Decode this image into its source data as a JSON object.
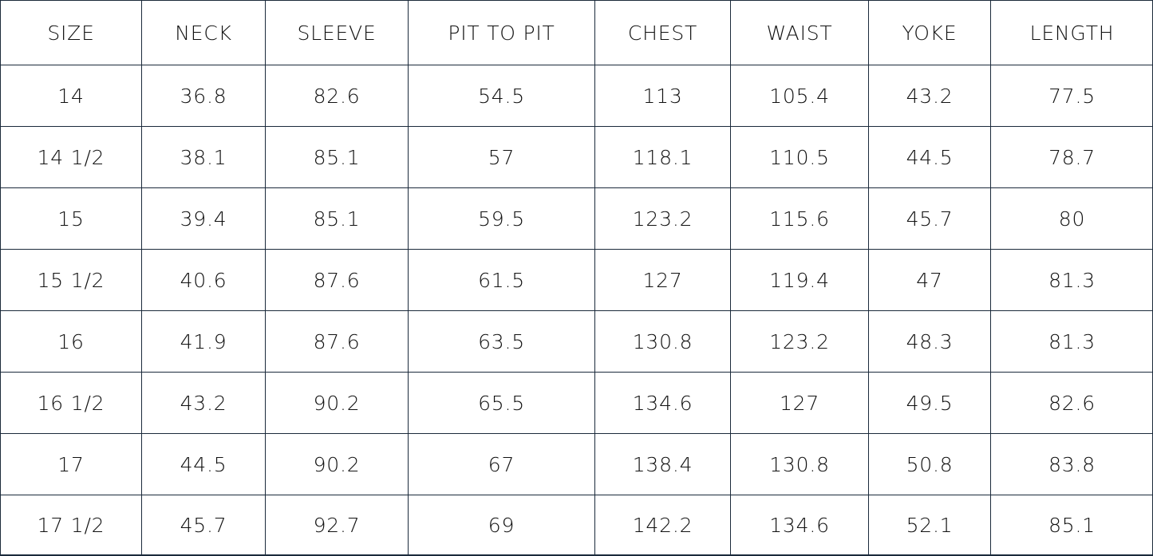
{
  "table": {
    "header": [
      "SIZE",
      "NECK",
      "SLEEVE",
      "PIT TO PIT",
      "CHEST",
      "WAIST",
      "YOKE",
      "LENGTH"
    ],
    "rows": [
      [
        "14",
        "36.8",
        "82.6",
        "54.5",
        "113",
        "105.4",
        "43.2",
        "77.5"
      ],
      [
        "14 1/2",
        "38.1",
        "85.1",
        "57",
        "118.1",
        "110.5",
        "44.5",
        "78.7"
      ],
      [
        "15",
        "39.4",
        "85.1",
        "59.5",
        "123.2",
        "115.6",
        "45.7",
        "80"
      ],
      [
        "15 1/2",
        "40.6",
        "87.6",
        "61.5",
        "127",
        "119.4",
        "47",
        "81.3"
      ],
      [
        "16",
        "41.9",
        "87.6",
        "63.5",
        "130.8",
        "123.2",
        "48.3",
        "81.3"
      ],
      [
        "16 1/2",
        "43.2",
        "90.2",
        "65.5",
        "134.6",
        "127",
        "49.5",
        "82.6"
      ],
      [
        "17",
        "44.5",
        "90.2",
        "67",
        "138.4",
        "130.8",
        "50.8",
        "83.8"
      ],
      [
        "17 1/2",
        "45.7",
        "92.7",
        "69",
        "142.2",
        "134.6",
        "52.1",
        "85.1"
      ]
    ]
  }
}
